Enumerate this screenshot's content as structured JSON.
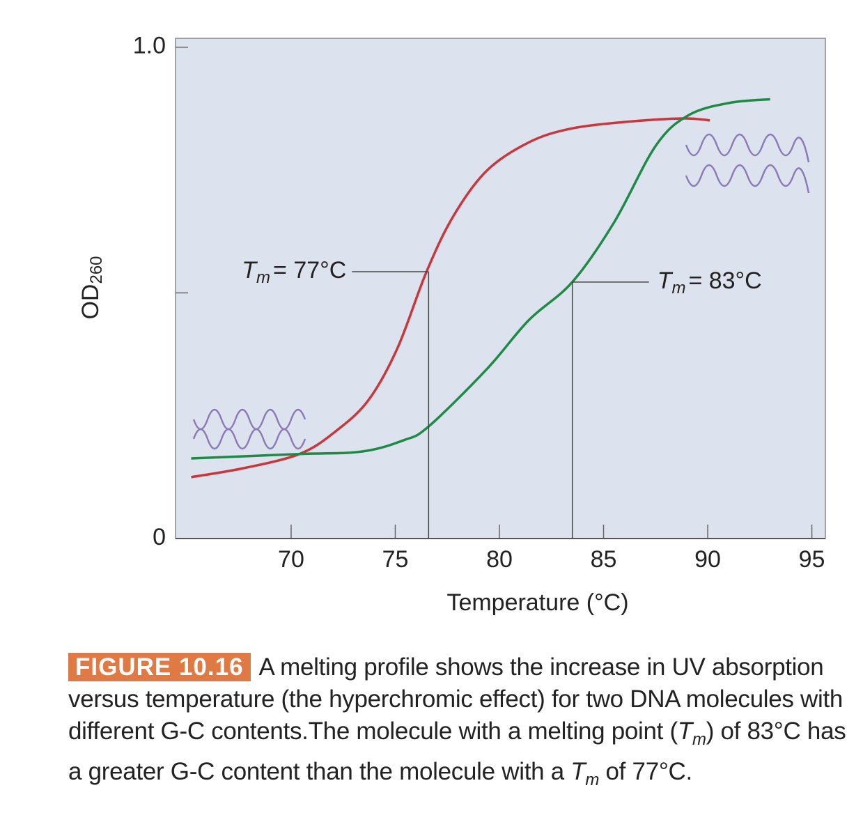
{
  "chart_data": {
    "type": "line",
    "xlabel": "Temperature (°C)",
    "ylabel": "OD",
    "ylabel_sub": "260",
    "xlim": [
      64.45,
      95.65
    ],
    "xticks": [
      70,
      75,
      80,
      85,
      90,
      95
    ],
    "ylim": [
      0,
      1.018
    ],
    "yticks": [
      0,
      {
        "value": 1,
        "label": "1.0"
      }
    ],
    "y_minor_ticks": [
      0.5
    ],
    "series": [
      {
        "color": "#c8373c",
        "x": [
          65.2,
          67.7,
          70.4,
          72.1,
          73.7,
          75.1,
          76.5,
          77.8,
          79.4,
          81.4,
          83.4,
          86.1,
          88.8,
          90.1
        ],
        "values": [
          0.125,
          0.143,
          0.172,
          0.217,
          0.281,
          0.387,
          0.543,
          0.657,
          0.749,
          0.806,
          0.834,
          0.848,
          0.855,
          0.851
        ]
      },
      {
        "color": "#1f8a45",
        "x": [
          65.2,
          70.4,
          73.4,
          75.4,
          76.6,
          79.4,
          81.4,
          83.5,
          85.5,
          87.5,
          89.1,
          91.1,
          93.0
        ],
        "values": [
          0.163,
          0.172,
          0.177,
          0.2,
          0.228,
          0.345,
          0.444,
          0.522,
          0.643,
          0.799,
          0.862,
          0.887,
          0.894
        ]
      }
    ],
    "annotations": [
      {
        "symbol": "T",
        "sub": "m",
        "text": "= 77°C",
        "x": 76.6,
        "y": 0.543
      },
      {
        "symbol": "T",
        "sub": "m",
        "text": "= 83°C",
        "x": 83.5,
        "y": 0.522
      }
    ]
  },
  "caption": {
    "label": "FIGURE 10.16",
    "segments": [
      {
        "text": "A melting profile shows the increase in UV absorption versus temperature (the hyperchromic effect) for two DNA molecules with different G-C contents.The molecule with a melting point ("
      },
      {
        "italic": "T",
        "sub": "m"
      },
      {
        "text": ") of 83°C has a greater G-C content than the molecule with a "
      },
      {
        "italic": "T",
        "sub": "m"
      },
      {
        "text": " of 77°C."
      }
    ]
  }
}
